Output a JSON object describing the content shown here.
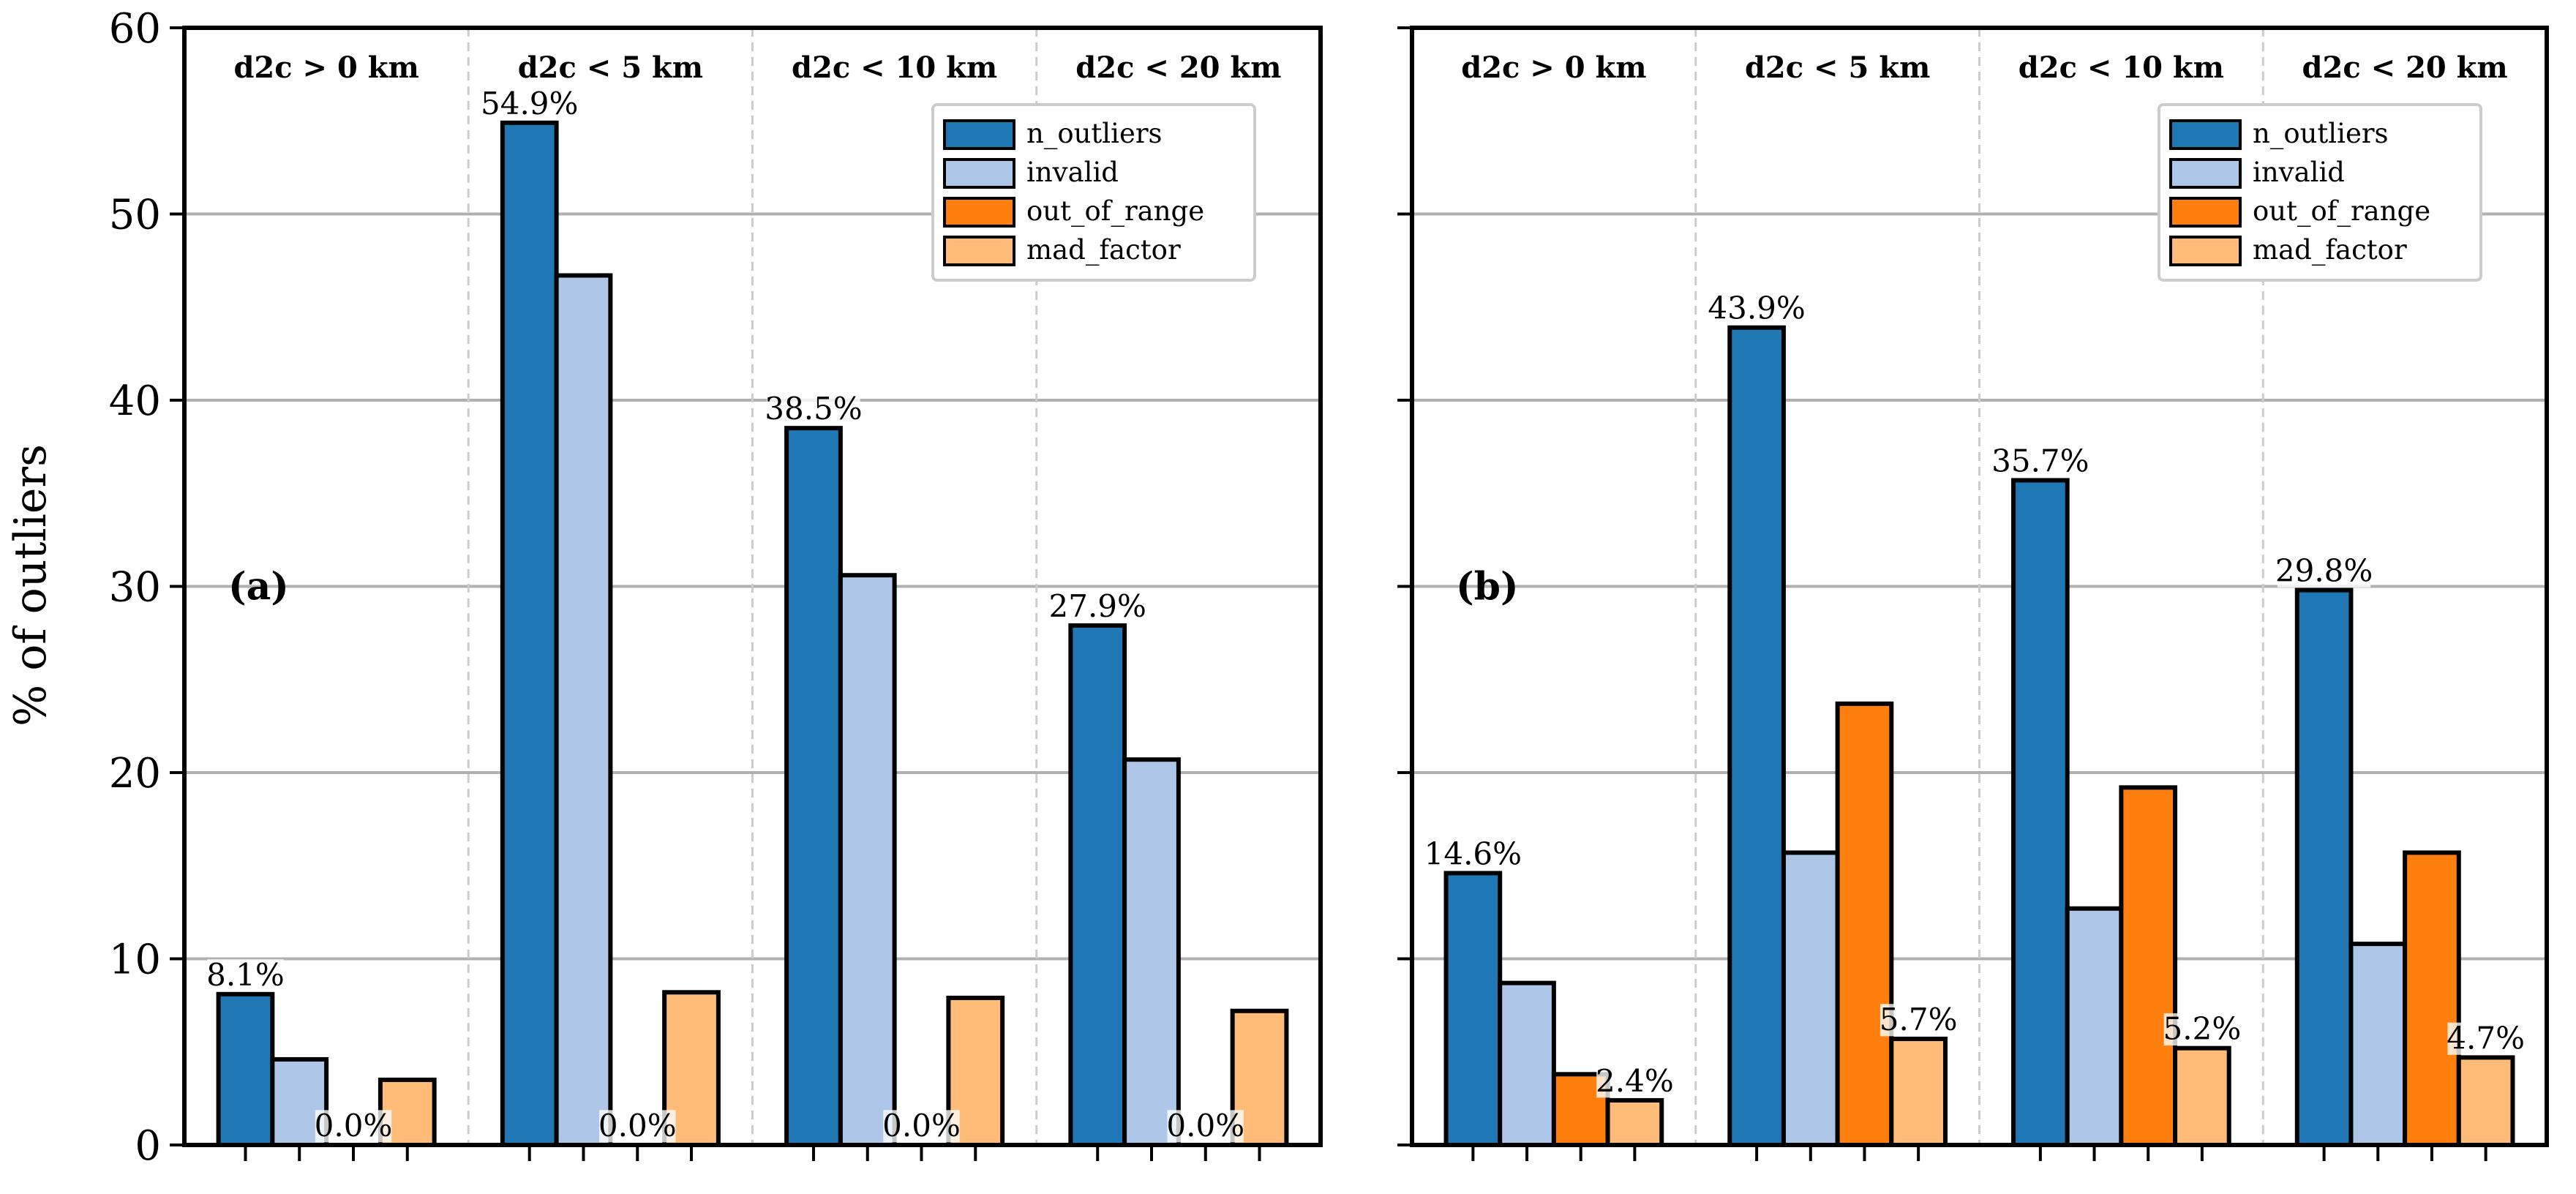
{
  "chart_data": {
    "type": "bar",
    "ylabel": "% of outliers",
    "ylim": [
      0,
      60
    ],
    "yticks": [
      0,
      10,
      20,
      30,
      40,
      50,
      60
    ],
    "grid": "y",
    "groups": [
      "d2c > 0 km",
      "d2c < 5 km",
      "d2c < 10 km",
      "d2c < 20 km"
    ],
    "legend": {
      "placement": "top-right",
      "entries": [
        {
          "name": "n_outliers",
          "color": "#1f77b4"
        },
        {
          "name": "invalid",
          "color": "#aec7e8"
        },
        {
          "name": "out_of_range",
          "color": "#ff7f0e"
        },
        {
          "name": "mad_factor",
          "color": "#ffbb78"
        }
      ]
    },
    "panels": [
      {
        "label": "(a)",
        "series": [
          {
            "name": "n_outliers",
            "values": [
              8.1,
              54.9,
              38.5,
              27.9
            ]
          },
          {
            "name": "invalid",
            "values": [
              4.6,
              46.7,
              30.6,
              20.7
            ]
          },
          {
            "name": "out_of_range",
            "values": [
              0.0,
              0.0,
              0.0,
              0.0
            ]
          },
          {
            "name": "mad_factor",
            "values": [
              3.5,
              8.2,
              7.9,
              7.2
            ]
          }
        ],
        "annotations": [
          {
            "series": "n_outliers",
            "group": 0,
            "text": "8.1%"
          },
          {
            "series": "n_outliers",
            "group": 1,
            "text": "54.9%"
          },
          {
            "series": "n_outliers",
            "group": 2,
            "text": "38.5%"
          },
          {
            "series": "n_outliers",
            "group": 3,
            "text": "27.9%"
          },
          {
            "series": "out_of_range",
            "group": 0,
            "text": "0.0%"
          },
          {
            "series": "out_of_range",
            "group": 1,
            "text": "0.0%"
          },
          {
            "series": "out_of_range",
            "group": 2,
            "text": "0.0%"
          },
          {
            "series": "out_of_range",
            "group": 3,
            "text": "0.0%"
          }
        ]
      },
      {
        "label": "(b)",
        "series": [
          {
            "name": "n_outliers",
            "values": [
              14.6,
              43.9,
              35.7,
              29.8
            ]
          },
          {
            "name": "invalid",
            "values": [
              8.7,
              15.7,
              12.7,
              10.8
            ]
          },
          {
            "name": "out_of_range",
            "values": [
              3.8,
              23.7,
              19.2,
              15.7
            ]
          },
          {
            "name": "mad_factor",
            "values": [
              2.4,
              5.7,
              5.2,
              4.7
            ]
          }
        ],
        "annotations": [
          {
            "series": "n_outliers",
            "group": 0,
            "text": "14.6%"
          },
          {
            "series": "n_outliers",
            "group": 1,
            "text": "43.9%"
          },
          {
            "series": "n_outliers",
            "group": 2,
            "text": "35.7%"
          },
          {
            "series": "n_outliers",
            "group": 3,
            "text": "29.8%"
          },
          {
            "series": "mad_factor",
            "group": 0,
            "text": "2.4%"
          },
          {
            "series": "mad_factor",
            "group": 1,
            "text": "5.7%"
          },
          {
            "series": "mad_factor",
            "group": 2,
            "text": "5.2%"
          },
          {
            "series": "mad_factor",
            "group": 3,
            "text": "4.7%"
          }
        ]
      }
    ]
  }
}
